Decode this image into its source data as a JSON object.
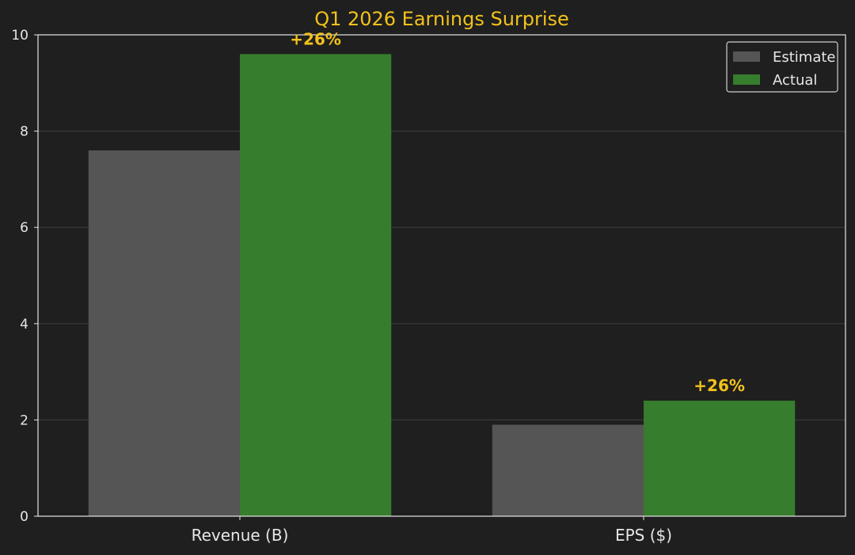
{
  "chart_data": {
    "type": "bar",
    "title": "Q1 2026 Earnings Surprise",
    "categories": [
      "Revenue (B)",
      "EPS ($)"
    ],
    "series": [
      {
        "name": "Estimate",
        "values": [
          7.6,
          1.9
        ],
        "color": "#555555"
      },
      {
        "name": "Actual",
        "values": [
          9.6,
          2.4
        ],
        "color": "#367d2d"
      }
    ],
    "annotations": [
      "+26%",
      "+26%"
    ],
    "ylim": [
      0,
      10
    ],
    "yticks": [
      "0",
      "2",
      "4",
      "6",
      "8",
      "10"
    ],
    "grid": true,
    "legend": "top-right",
    "colors": {
      "background": "#1f1f1f",
      "title": "#f2c21b",
      "annotation": "#f2c21b",
      "axis": "#e6e6e6",
      "grid": "#3a3a3a"
    }
  }
}
